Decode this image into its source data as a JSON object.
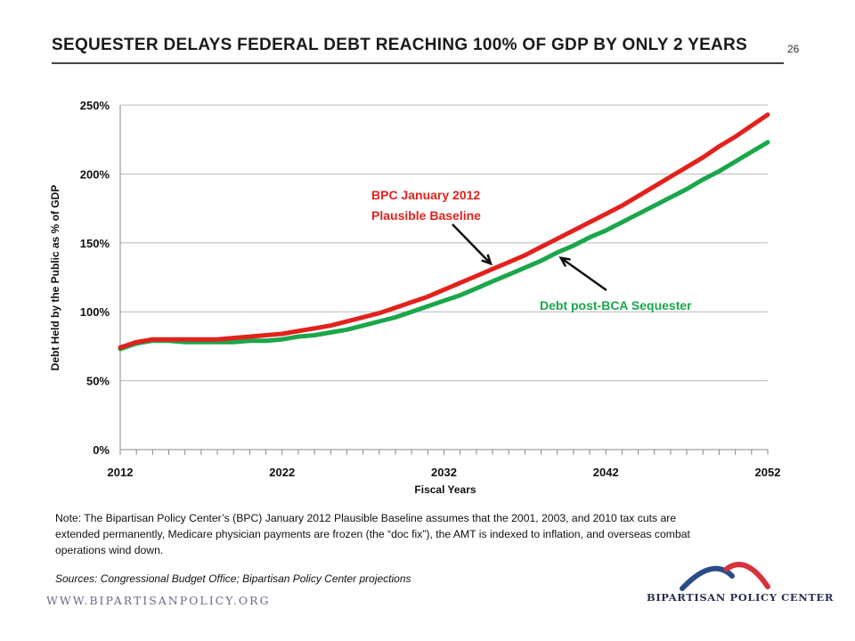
{
  "slide": {
    "title": "SEQUESTER DELAYS FEDERAL DEBT REACHING 100% OF GDP BY ONLY 2 YEARS",
    "page_number": "26",
    "note": "Note: The Bipartisan Policy Center’s (BPC) January 2012 Plausible Baseline assumes that the 2001,  2003,  and 2010  tax cuts are extended permanently, Medicare physician payments are frozen (the “doc fix”), the AMT is indexed to inflation, and overseas combat operations wind down.",
    "sources": "Sources: Congressional  Budget Office; Bipartisan Policy Center projections",
    "footer_url": "WWW.BIPARTISANPOLICY.ORG",
    "logo_text": "BIPARTISAN POLICY CENTER",
    "colors": {
      "red": "#e3211c",
      "green": "#1aa64a",
      "logo_blue": "#2b4c86",
      "logo_red": "#d7323a"
    }
  },
  "chart_data": {
    "type": "line",
    "xlabel": "Fiscal Years",
    "ylabel": "Debt Held by the Public as % of GDP",
    "xlim": [
      2012,
      2052
    ],
    "ylim": [
      0,
      250
    ],
    "x_ticks": [
      2012,
      2022,
      2032,
      2042,
      2052
    ],
    "y_ticks": [
      0,
      50,
      100,
      150,
      200,
      250
    ],
    "y_tick_labels": [
      "0%",
      "50%",
      "100%",
      "150%",
      "200%",
      "250%"
    ],
    "grid": "horizontal",
    "x": [
      2012,
      2013,
      2014,
      2015,
      2016,
      2017,
      2018,
      2019,
      2020,
      2021,
      2022,
      2023,
      2024,
      2025,
      2026,
      2027,
      2028,
      2029,
      2030,
      2031,
      2032,
      2033,
      2034,
      2035,
      2036,
      2037,
      2038,
      2039,
      2040,
      2041,
      2042,
      2043,
      2044,
      2045,
      2046,
      2047,
      2048,
      2049,
      2050,
      2051,
      2052
    ],
    "series": [
      {
        "name": "BPC January 2012 Plausible Baseline",
        "color": "#e3211c",
        "values": [
          74,
          78,
          80,
          80,
          80,
          80,
          80,
          81,
          82,
          83,
          84,
          86,
          88,
          90,
          93,
          96,
          99,
          103,
          107,
          111,
          116,
          121,
          126,
          131,
          136,
          141,
          147,
          153,
          159,
          165,
          171,
          177,
          184,
          191,
          198,
          205,
          212,
          220,
          227,
          235,
          243
        ]
      },
      {
        "name": "Debt post-BCA Sequester",
        "color": "#1aa64a",
        "values": [
          73,
          77,
          79,
          79,
          78,
          78,
          78,
          78,
          79,
          79,
          80,
          82,
          83,
          85,
          87,
          90,
          93,
          96,
          100,
          104,
          108,
          112,
          117,
          122,
          127,
          132,
          137,
          143,
          148,
          154,
          159,
          165,
          171,
          177,
          183,
          189,
          196,
          202,
          209,
          216,
          223
        ]
      }
    ],
    "annotations": [
      {
        "text_line1": "BPC January 2012",
        "text_line2": "Plausible Baseline",
        "color": "#e3211c",
        "points_to_x": 2035
      },
      {
        "text": "Debt post-BCA Sequester",
        "color": "#1aa64a",
        "points_to_x": 2039
      }
    ]
  }
}
